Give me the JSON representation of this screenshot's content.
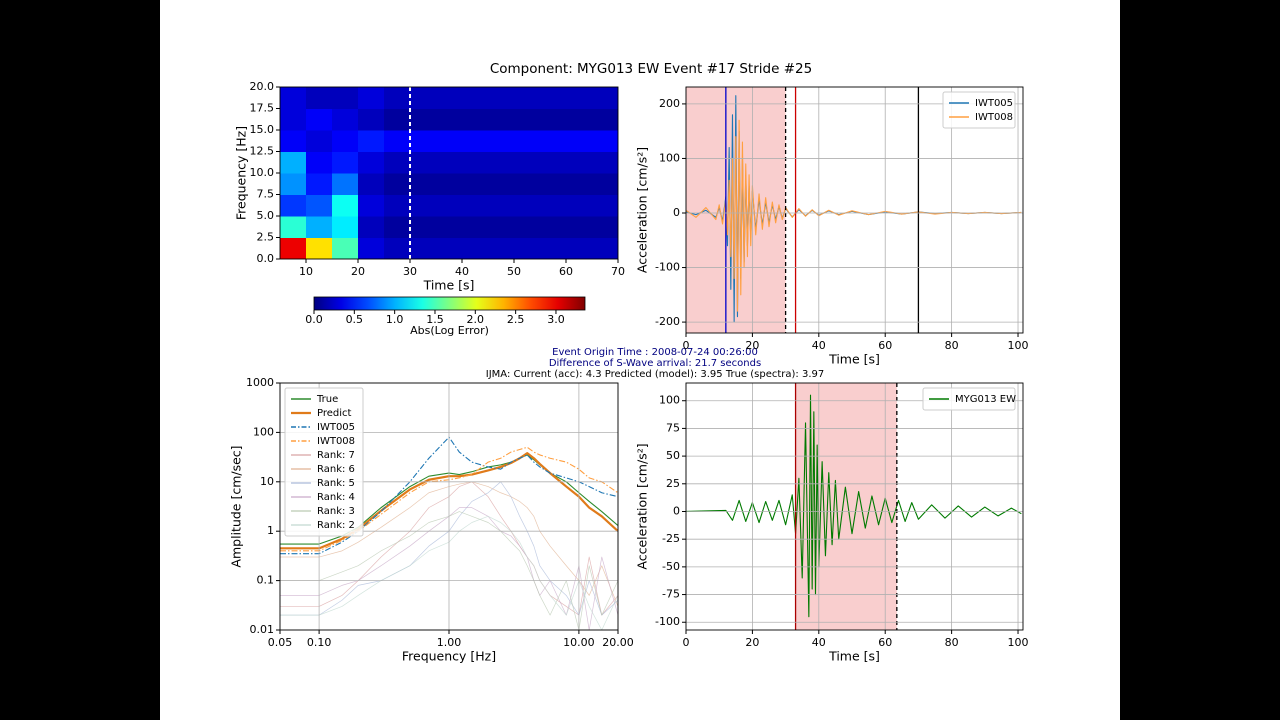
{
  "title": "Component: MYG013 EW Event #17 Stride #25",
  "annotations": [
    "Event Origin Time : 2008-07-24 00:26:00",
    "Difference of S-Wave arrival: 21.7 seconds",
    "IJMA: Current (acc): 4.3  Predicted (model): 3.95  True (spectra): 3.97"
  ],
  "chart_data": [
    {
      "type": "heatmap",
      "xlabel": "Time [s]",
      "ylabel": "Frequency [Hz]",
      "xlim": [
        5,
        70
      ],
      "xticks": [
        10,
        20,
        30,
        40,
        50,
        60,
        70
      ],
      "ylim": [
        0,
        20
      ],
      "yticks": [
        {
          "value": 0,
          "label": "0.0"
        },
        {
          "value": 2.5,
          "label": "2.5"
        },
        {
          "value": 5,
          "label": "5.0"
        },
        {
          "value": 7.5,
          "label": "7.5"
        },
        {
          "value": 10,
          "label": "10.0"
        },
        {
          "value": 12.5,
          "label": "12.5"
        },
        {
          "value": 15,
          "label": "15.0"
        },
        {
          "value": 17.5,
          "label": "17.5"
        },
        {
          "value": 20,
          "label": "20.0"
        }
      ],
      "x_edges": [
        5,
        10,
        15,
        20,
        25,
        30,
        35,
        40,
        45,
        50,
        55,
        60,
        65,
        70
      ],
      "y_edges": [
        0,
        2.5,
        5,
        7.5,
        10,
        12.5,
        15,
        17.5,
        20
      ],
      "z": [
        [
          3.0,
          2.2,
          1.5,
          0.3,
          0.2,
          0.2,
          0.2,
          0.2,
          0.2,
          0.2,
          0.2,
          0.2,
          0.2
        ],
        [
          1.4,
          1.0,
          1.2,
          0.2,
          0.1,
          0.1,
          0.1,
          0.1,
          0.1,
          0.1,
          0.1,
          0.1,
          0.1
        ],
        [
          0.6,
          0.7,
          1.3,
          0.3,
          0.2,
          0.2,
          0.2,
          0.2,
          0.2,
          0.2,
          0.2,
          0.2,
          0.2
        ],
        [
          0.9,
          0.5,
          0.8,
          0.2,
          0.1,
          0.1,
          0.1,
          0.1,
          0.1,
          0.1,
          0.1,
          0.1,
          0.1
        ],
        [
          1.0,
          0.4,
          0.5,
          0.3,
          0.2,
          0.2,
          0.2,
          0.2,
          0.2,
          0.2,
          0.2,
          0.2,
          0.2
        ],
        [
          0.4,
          0.3,
          0.4,
          0.5,
          0.4,
          0.4,
          0.4,
          0.4,
          0.4,
          0.4,
          0.4,
          0.4,
          0.4
        ],
        [
          0.3,
          0.4,
          0.3,
          0.2,
          0.1,
          0.1,
          0.1,
          0.1,
          0.1,
          0.1,
          0.1,
          0.1,
          0.1
        ],
        [
          0.3,
          0.2,
          0.2,
          0.3,
          0.2,
          0.2,
          0.2,
          0.2,
          0.2,
          0.2,
          0.2,
          0.2,
          0.2
        ]
      ],
      "vlines": [
        {
          "x": 30,
          "color": "#ffffff",
          "dash": true
        }
      ],
      "colorbar": {
        "label": "Abs(Log Error)",
        "lim": [
          0,
          3.36
        ],
        "ticks": [
          {
            "value": 0,
            "label": "0.0"
          },
          {
            "value": 0.5,
            "label": "0.5"
          },
          {
            "value": 1,
            "label": "1.0"
          },
          {
            "value": 1.5,
            "label": "1.5"
          },
          {
            "value": 2,
            "label": "2.0"
          },
          {
            "value": 2.5,
            "label": "2.5"
          },
          {
            "value": 3,
            "label": "3.0"
          }
        ]
      }
    },
    {
      "type": "line",
      "xlabel": "Time [s]",
      "ylabel": "Acceleration [cm/s²]",
      "grid": true,
      "legend": "upper right",
      "xlim": [
        0,
        101.5
      ],
      "xticks": [
        0,
        20,
        40,
        60,
        80,
        100
      ],
      "ylim": [
        -220,
        231
      ],
      "yticks": [
        -200,
        -100,
        0,
        100,
        200
      ],
      "spans": [
        {
          "x": [
            0,
            30
          ],
          "color": "#f4a6a6"
        }
      ],
      "vlines": [
        {
          "x": 12,
          "color": "#0000cc"
        },
        {
          "x": 30,
          "color": "#000000",
          "dash": true
        },
        {
          "x": 33,
          "color": "#cc0000"
        },
        {
          "x": 70,
          "color": "#000000"
        }
      ],
      "x": [
        0,
        3,
        6,
        9,
        10,
        11,
        12,
        12.5,
        13,
        13.5,
        14,
        14.5,
        15,
        15.5,
        16,
        16.5,
        17,
        17.5,
        18,
        18.5,
        19,
        19.5,
        20,
        21,
        22,
        23,
        24,
        25,
        26,
        27,
        28,
        29,
        30,
        32,
        34,
        36,
        38,
        40,
        43,
        46,
        50,
        55,
        60,
        65,
        70,
        75,
        80,
        85,
        90,
        95,
        101
      ],
      "series": [
        {
          "name": "IWT005",
          "color": "#1f77b4",
          "values": [
            2,
            -3,
            5,
            -8,
            10,
            -15,
            30,
            -60,
            120,
            -140,
            180,
            -200,
            215,
            -190,
            150,
            -120,
            100,
            -90,
            70,
            -60,
            50,
            -45,
            40,
            -30,
            25,
            -22,
            20,
            -18,
            15,
            -12,
            12,
            -10,
            8,
            -7,
            6,
            -5,
            5,
            -4,
            4,
            -3,
            3,
            -3,
            2,
            -2,
            2,
            -1,
            1,
            -1,
            1,
            -1,
            1
          ]
        },
        {
          "name": "IWT008",
          "color": "#ff9f40",
          "values": [
            5,
            -8,
            10,
            -12,
            15,
            -20,
            25,
            -40,
            60,
            -80,
            100,
            -120,
            140,
            -180,
            170,
            -150,
            130,
            -100,
            90,
            -80,
            70,
            -60,
            50,
            -40,
            35,
            -30,
            28,
            -25,
            20,
            -18,
            15,
            -12,
            10,
            -8,
            8,
            -6,
            6,
            -5,
            5,
            -4,
            4,
            -3,
            3,
            -2,
            2,
            -2,
            1,
            -1,
            1,
            -1,
            1
          ]
        }
      ]
    },
    {
      "type": "line",
      "xlabel": "Frequency [Hz]",
      "ylabel": "Amplitude [cm/sec]",
      "grid": true,
      "legend": "upper left",
      "xlog": true,
      "ylog": true,
      "xlim": [
        0.05,
        20
      ],
      "xticks": [
        0.05,
        {
          "value": 0.1,
          "label": "0.10"
        },
        {
          "value": 1,
          "label": "1.00"
        },
        {
          "value": 10,
          "label": "10.00"
        },
        {
          "value": 20,
          "label": "20.00"
        }
      ],
      "ylim": [
        0.01,
        1000
      ],
      "yticks": [
        0.01,
        0.1,
        1,
        10,
        100,
        1000
      ],
      "x": [
        0.05,
        0.1,
        0.15,
        0.2,
        0.3,
        0.5,
        0.7,
        1.0,
        1.2,
        1.5,
        2,
        2.5,
        3,
        3.5,
        4,
        4.5,
        5,
        6,
        8,
        10,
        12,
        15,
        20
      ],
      "series": [
        {
          "name": "True",
          "color": "#2e8b2e",
          "values": [
            0.55,
            0.55,
            0.8,
            1.2,
            3,
            8,
            13,
            15,
            14,
            16,
            20,
            22,
            25,
            30,
            35,
            28,
            22,
            15,
            10,
            6,
            4,
            2.5,
            1.3
          ]
        },
        {
          "name": "Predict",
          "color": "#e07b1a",
          "width": 2.2,
          "values": [
            0.45,
            0.45,
            0.7,
            1.1,
            2.6,
            7,
            11,
            13,
            13,
            14,
            17,
            20,
            24,
            30,
            38,
            30,
            23,
            15,
            8,
            5,
            3,
            2,
            1.0
          ]
        },
        {
          "name": "IWT005",
          "color": "#1f77b4",
          "style": "dashdot",
          "values": [
            0.35,
            0.35,
            0.6,
            1.0,
            2.5,
            10,
            30,
            80,
            40,
            25,
            20,
            18,
            25,
            30,
            35,
            25,
            20,
            15,
            12,
            10,
            8,
            6,
            5
          ]
        },
        {
          "name": "IWT008",
          "color": "#ff9f40",
          "style": "dashdot",
          "values": [
            0.4,
            0.4,
            0.65,
            1.0,
            2.2,
            6,
            10,
            11,
            12,
            14,
            25,
            30,
            40,
            45,
            50,
            40,
            35,
            30,
            25,
            18,
            12,
            10,
            6
          ]
        },
        {
          "name": "Rank: 7",
          "color": "#d8a0a0",
          "faint": true,
          "values": [
            0.03,
            0.03,
            0.05,
            0.1,
            0.3,
            1,
            3,
            5,
            8,
            10,
            5,
            2,
            1,
            0.5,
            0.3,
            0.2,
            0.1,
            0.05,
            0.03,
            0.02,
            0.3,
            0.02,
            0.05
          ]
        },
        {
          "name": "Rank: 6",
          "color": "#e0b090",
          "faint": true,
          "values": [
            0.3,
            0.3,
            0.4,
            0.6,
            1.2,
            3,
            6,
            8,
            9,
            10,
            8,
            6,
            5,
            4,
            3,
            2,
            1,
            0.5,
            0.2,
            0.1,
            0.05,
            0.2,
            0.03
          ]
        },
        {
          "name": "Rank: 5",
          "color": "#a8b8d8",
          "faint": true,
          "values": [
            0.02,
            0.02,
            0.04,
            0.08,
            0.1,
            0.2,
            0.5,
            1,
            2,
            4,
            6,
            10,
            5,
            2,
            1,
            0.5,
            0.2,
            0.1,
            0.05,
            0.02,
            0.1,
            0.02,
            0.04
          ]
        },
        {
          "name": "Rank: 4",
          "color": "#c8a8c8",
          "faint": true,
          "values": [
            0.05,
            0.05,
            0.08,
            0.1,
            0.2,
            0.5,
            1,
            2,
            3,
            3,
            2,
            1,
            0.8,
            0.5,
            0.3,
            0.1,
            0.05,
            0.1,
            0.02,
            0.2,
            0.01,
            0.3,
            0.02
          ]
        },
        {
          "name": "Rank: 3",
          "color": "#b8c8b0",
          "faint": true,
          "values": [
            0.1,
            0.1,
            0.15,
            0.2,
            0.4,
            0.8,
            1.5,
            2,
            2.5,
            2,
            1.5,
            1,
            0.6,
            0.4,
            0.2,
            0.1,
            0.05,
            0.02,
            0.1,
            0.01,
            0.2,
            0.02,
            0.1
          ]
        },
        {
          "name": "Rank: 2",
          "color": "#c0d8d0",
          "faint": true,
          "values": [
            0.02,
            0.02,
            0.03,
            0.05,
            0.1,
            0.2,
            0.4,
            0.6,
            1,
            1.5,
            2,
            1.5,
            1,
            0.6,
            0.3,
            0.2,
            0.1,
            0.05,
            0.02,
            0.1,
            0.03,
            0.01,
            0.05
          ]
        }
      ]
    },
    {
      "type": "line",
      "xlabel": "Time [s]",
      "ylabel": "Acceleration [cm/s²]",
      "grid": true,
      "legend": "upper right",
      "xlim": [
        0,
        101.5
      ],
      "xticks": [
        0,
        20,
        40,
        60,
        80,
        100
      ],
      "ylim": [
        -107,
        116
      ],
      "yticks": [
        -100,
        -75,
        -50,
        -25,
        0,
        25,
        50,
        75,
        100
      ],
      "spans": [
        {
          "x": [
            33,
            63.5
          ],
          "color": "#f4a6a6"
        }
      ],
      "vlines": [
        {
          "x": 33,
          "color": "#aa0000"
        },
        {
          "x": 63.5,
          "color": "#000000",
          "dash": true
        }
      ],
      "x": [
        0,
        12,
        14,
        16,
        18,
        20,
        22,
        24,
        26,
        28,
        30,
        32,
        33,
        34,
        35,
        36,
        37,
        37.5,
        38,
        38.5,
        39,
        39.5,
        40,
        41,
        42,
        43,
        44,
        45,
        46,
        48,
        50,
        52,
        54,
        56,
        58,
        60,
        62,
        64,
        66,
        68,
        70,
        74,
        78,
        82,
        86,
        90,
        94,
        98,
        101
      ],
      "series": [
        {
          "name": "MYG013 EW",
          "color": "#007a00",
          "values": [
            0,
            1,
            -8,
            10,
            -9,
            8,
            -10,
            9,
            -8,
            10,
            -12,
            15,
            -20,
            30,
            -60,
            80,
            -95,
            105,
            -70,
            90,
            -75,
            60,
            -50,
            45,
            -40,
            35,
            -30,
            28,
            -25,
            22,
            -20,
            18,
            -15,
            14,
            -12,
            12,
            -10,
            10,
            -9,
            8,
            -7,
            6,
            -6,
            5,
            -5,
            4,
            -4,
            3,
            -2
          ]
        }
      ]
    }
  ]
}
